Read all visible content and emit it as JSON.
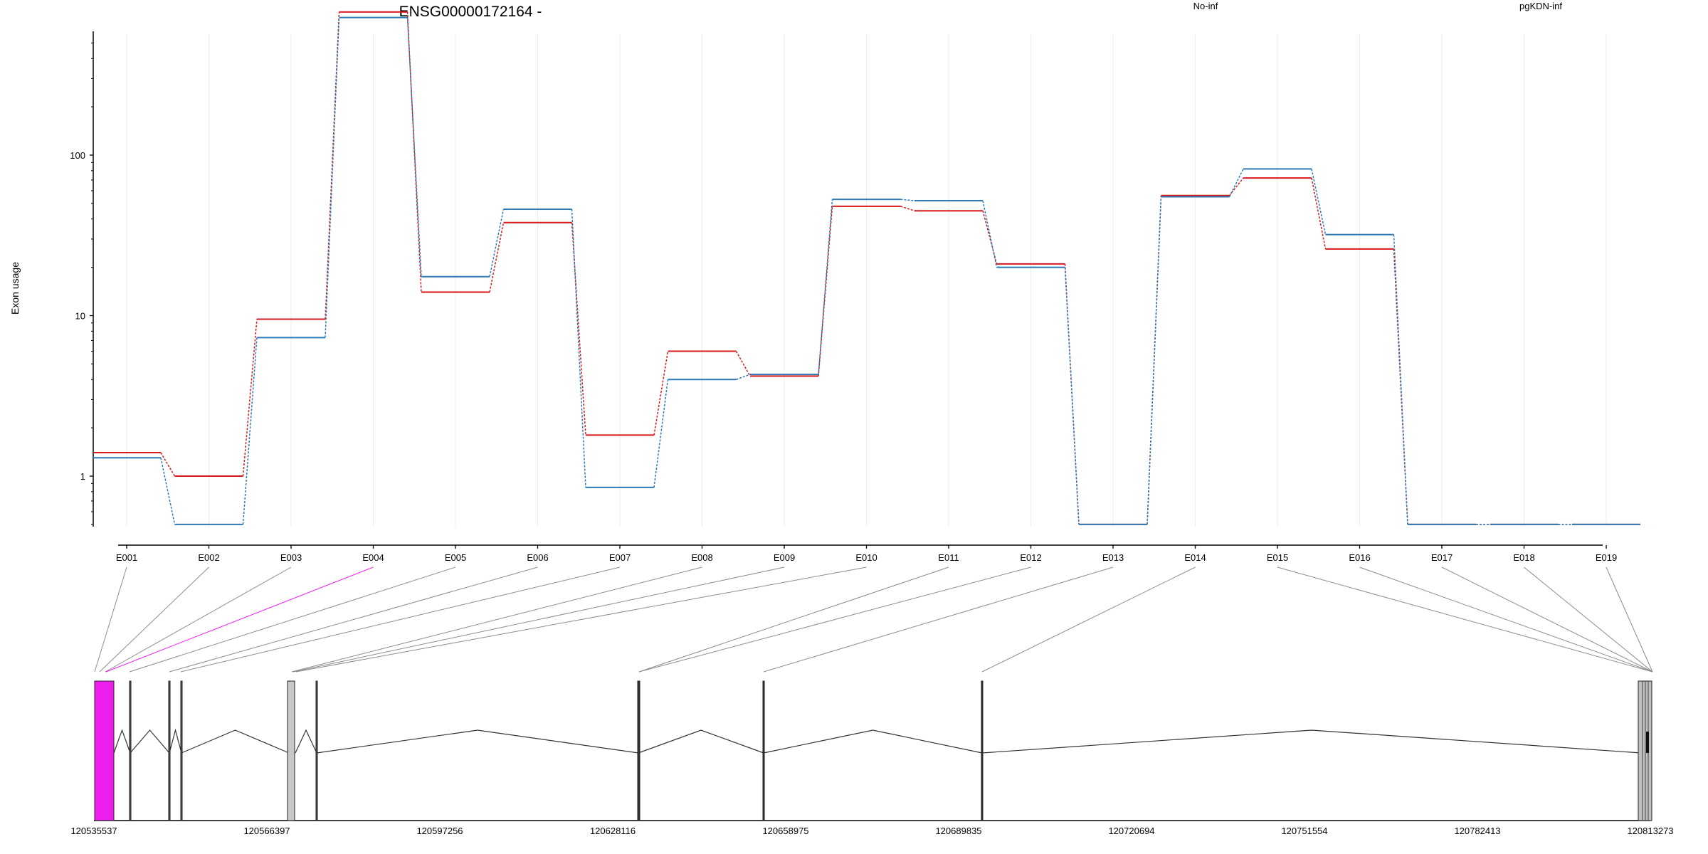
{
  "chart_data": {
    "type": "line",
    "title": "ENSG00000172164 -",
    "xlabel": "",
    "ylabel": "Exon usage",
    "y_scale": "log",
    "ylim": [
      0.5,
      1000
    ],
    "y_ticks": [
      1,
      10,
      100
    ],
    "y_tick_labels": [
      "1",
      "10",
      "100"
    ],
    "grid": true,
    "legend_placement": "top",
    "categories": [
      "E001",
      "E002",
      "E003",
      "E004",
      "E005",
      "E006",
      "E007",
      "E008",
      "E009",
      "E010",
      "E011",
      "E012",
      "E013",
      "E014",
      "E015",
      "E016",
      "E017",
      "E018",
      "E019"
    ],
    "series": [
      {
        "name": "No-inf",
        "color": "#d7191c",
        "values": [
          1.4,
          1.0,
          9.5,
          780,
          14,
          38,
          1.8,
          6.0,
          4.2,
          48,
          45,
          21,
          0.5,
          56,
          72,
          26,
          0.5,
          0.5,
          0.5
        ]
      },
      {
        "name": "pgKDN-inf",
        "color": "#2c7bb6",
        "values": [
          1.3,
          0.5,
          7.3,
          720,
          17.5,
          46,
          0.85,
          4.0,
          4.3,
          53,
          52,
          20,
          0.5,
          55,
          82,
          32,
          0.5,
          0.5,
          0.5
        ]
      }
    ],
    "gene_model": {
      "x_ticks": [
        "120535537",
        "120566397",
        "120597256",
        "120628116",
        "120658975",
        "120689835",
        "120720694",
        "120751554",
        "120782413",
        "120813273"
      ],
      "exon_genomic_starts": [
        120535537,
        120539000,
        120541500,
        120547600,
        120549800,
        120570400,
        120571500,
        120574300,
        120574300,
        120635300,
        120635300,
        120657800,
        120696700,
        120811500,
        120811500,
        120812200,
        120812700,
        120812700,
        120813273
      ],
      "exon_genomic_ends": [
        120539000,
        120539000,
        120541700,
        120548000,
        120550000,
        120571500,
        120571600,
        120574500,
        120574500,
        120635500,
        120635500,
        120658000,
        120696900,
        120812200,
        120812700,
        120812700,
        120813273,
        120813273,
        120813273
      ],
      "highlighted_exon": "E004",
      "highlight_color": "#ee1fee"
    }
  }
}
